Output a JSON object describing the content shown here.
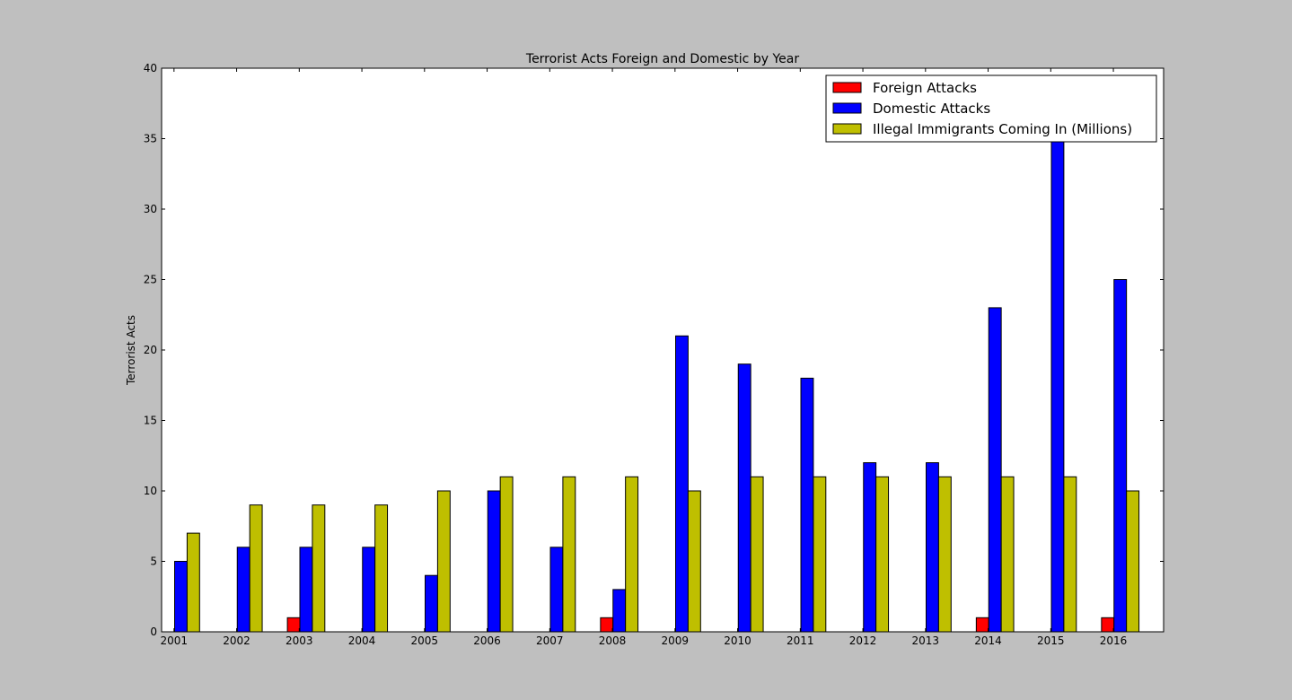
{
  "chart_data": {
    "type": "bar",
    "title": "Terrorist Acts Foreign and Domestic by Year",
    "xlabel": "",
    "ylabel": "Terrorist Acts",
    "categories": [
      "2001",
      "2002",
      "2003",
      "2004",
      "2005",
      "2006",
      "2007",
      "2008",
      "2009",
      "2010",
      "2011",
      "2012",
      "2013",
      "2014",
      "2015",
      "2016"
    ],
    "ylim": [
      0,
      40
    ],
    "yticks": [
      "0",
      "5",
      "10",
      "15",
      "20",
      "25",
      "30",
      "35",
      "40"
    ],
    "ytick_values": [
      0,
      5,
      10,
      15,
      20,
      25,
      30,
      35,
      40
    ],
    "grid": false,
    "legend_position": "top-right",
    "series": [
      {
        "name": "Foreign Attacks",
        "color": "#ff0000",
        "values": [
          0,
          0,
          1,
          0,
          0,
          0,
          0,
          1,
          0,
          0,
          0,
          0,
          0,
          1,
          0,
          1
        ]
      },
      {
        "name": "Domestic Attacks",
        "color": "#0000ff",
        "values": [
          5,
          6,
          6,
          6,
          4,
          10,
          6,
          3,
          21,
          19,
          18,
          12,
          12,
          23,
          35,
          25
        ]
      },
      {
        "name": "Illegal Immigrants Coming In (Millions)",
        "color": "#bfbf00",
        "values": [
          7,
          9,
          9,
          9,
          10,
          11,
          11,
          11,
          10,
          11,
          11,
          11,
          11,
          11,
          11,
          10
        ]
      }
    ]
  }
}
